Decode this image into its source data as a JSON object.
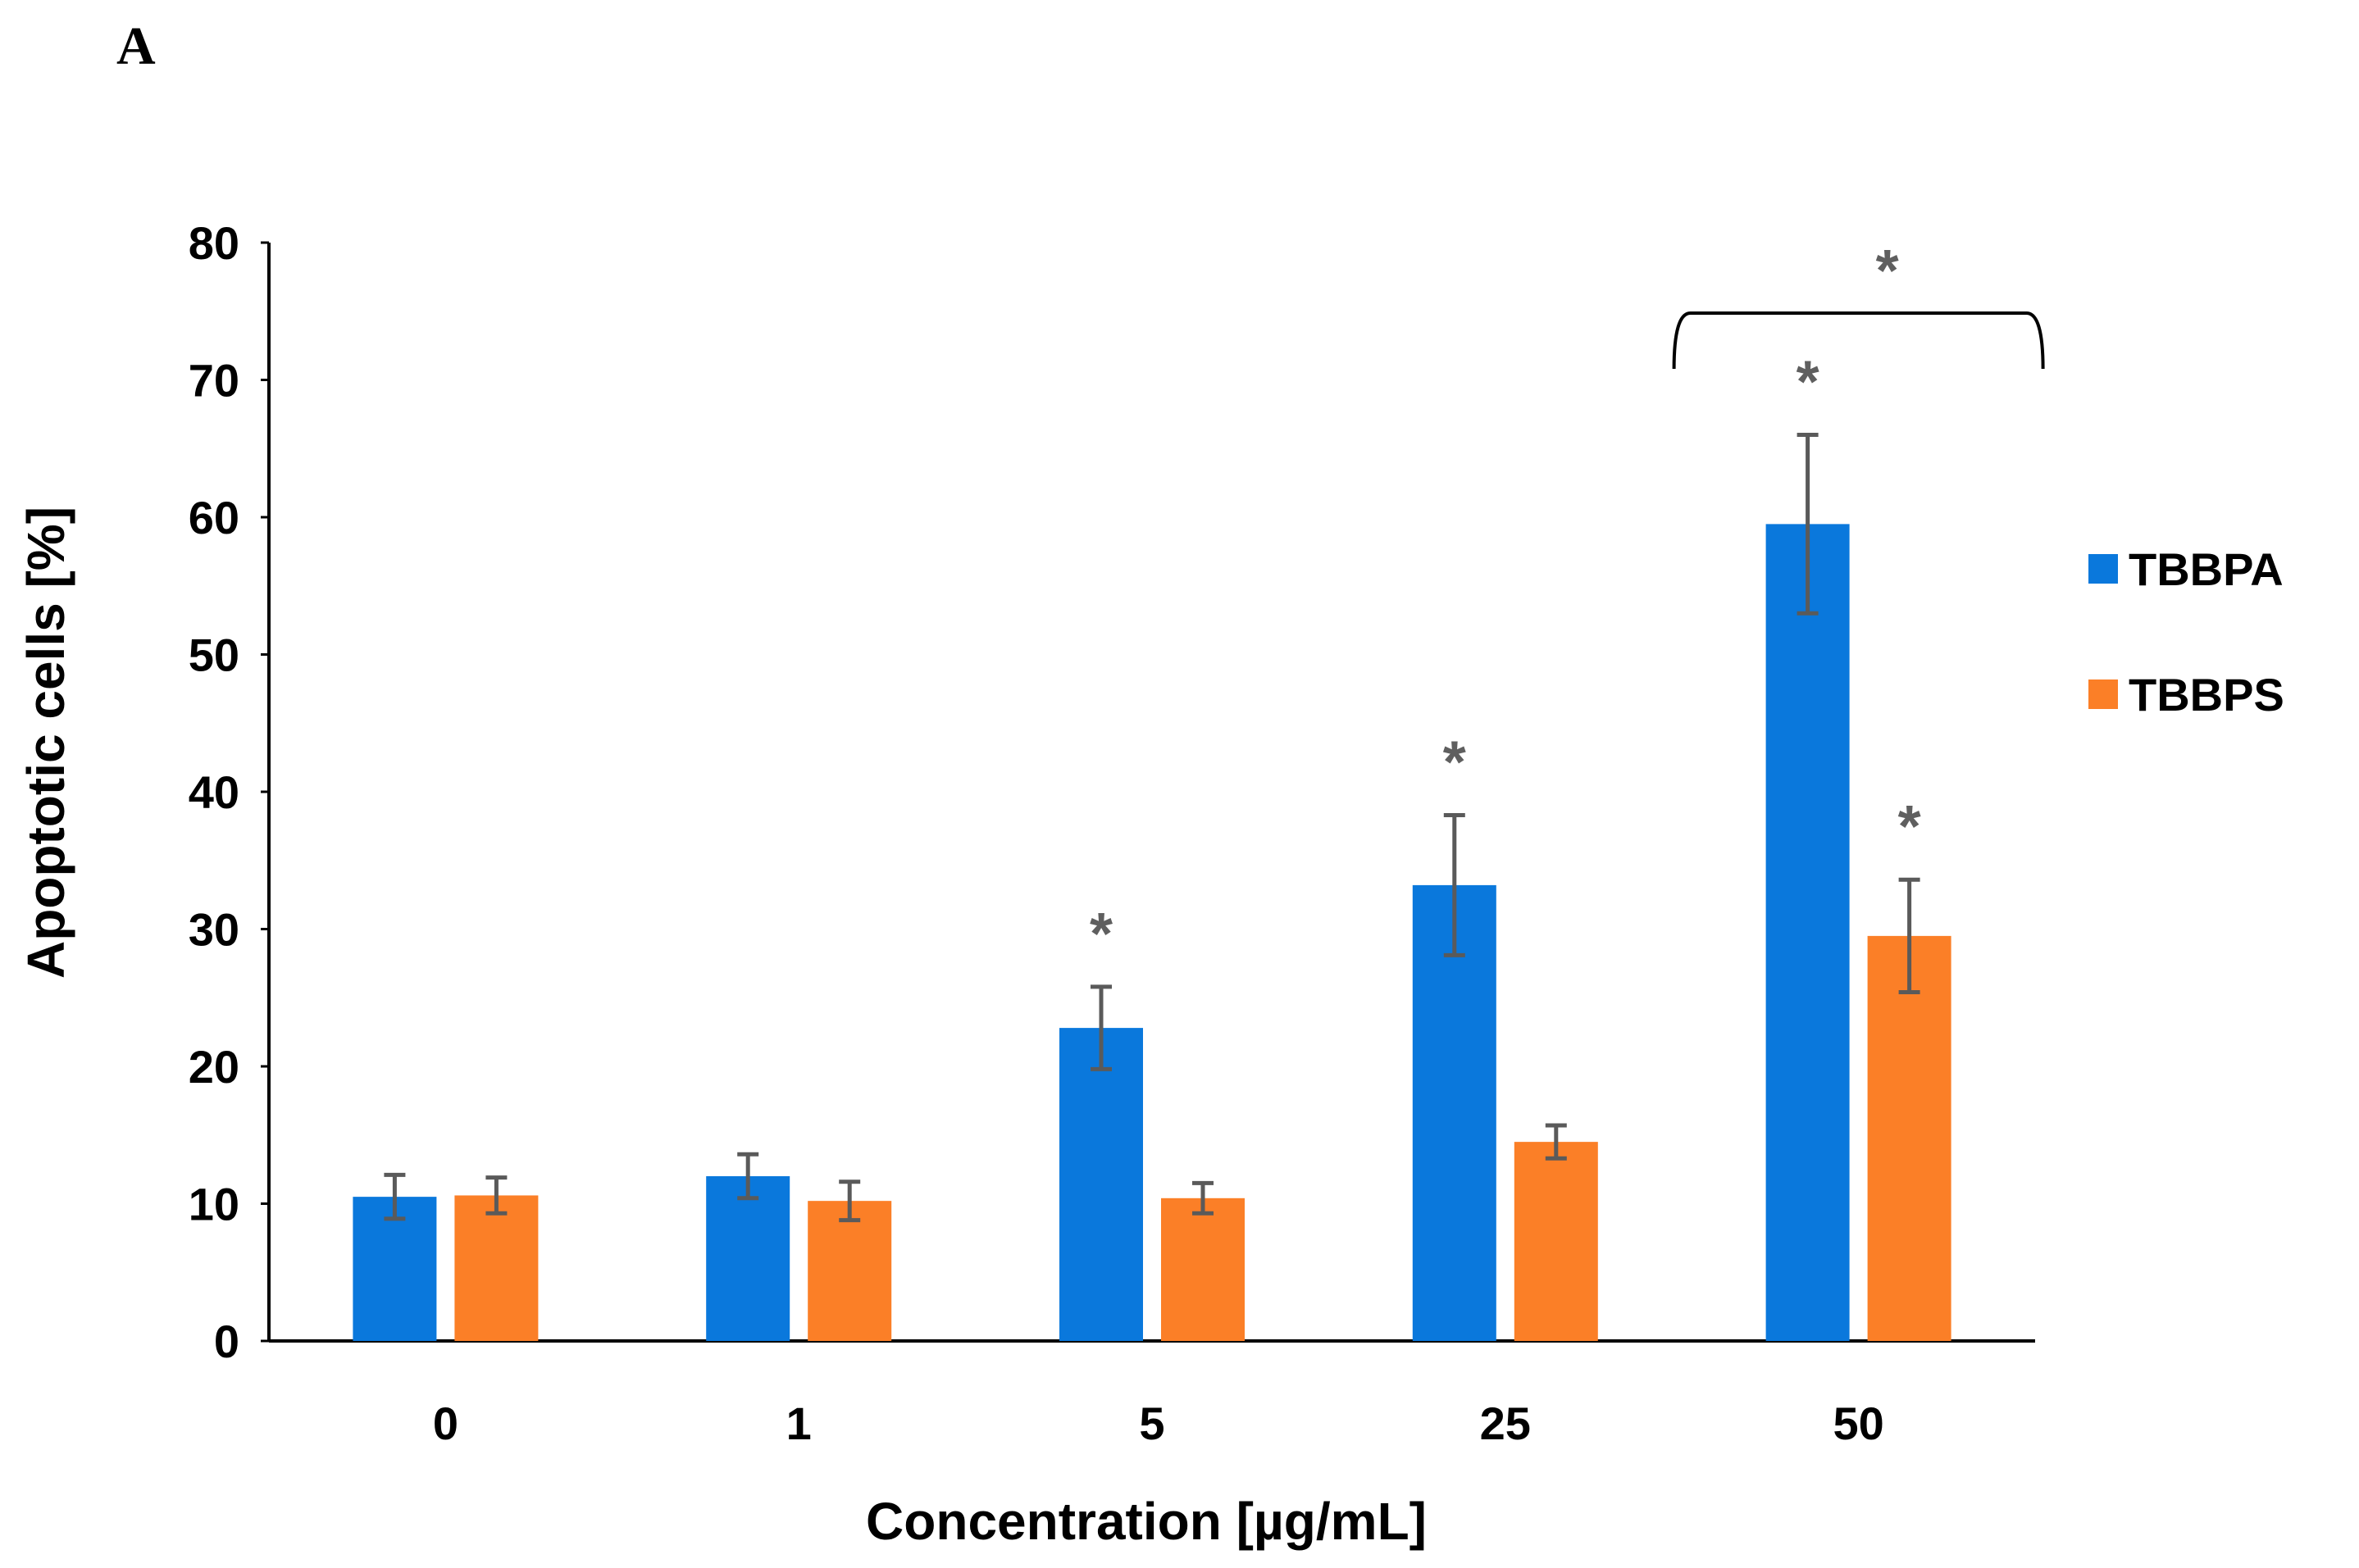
{
  "panel_label": "A",
  "colors": {
    "TBBPA": "#0a78dc",
    "TBBPS": "#fb7f27",
    "error_bar": "#5a5a5a",
    "axis": "#000000",
    "significance": "#5f5f5f"
  },
  "chart_data": {
    "type": "bar",
    "xlabel": "Concentration [µg/mL]",
    "ylabel": "Apoptotic cells [%]",
    "ylim": [
      0,
      80
    ],
    "yticks": [
      0,
      10,
      20,
      30,
      40,
      50,
      60,
      70,
      80
    ],
    "categories": [
      "0",
      "1",
      "5",
      "25",
      "50"
    ],
    "series": [
      {
        "name": "TBBPA",
        "values": [
          10.5,
          12.0,
          22.8,
          33.2,
          59.5
        ],
        "errors": [
          1.6,
          1.6,
          3.0,
          5.1,
          6.5
        ],
        "significant": [
          false,
          false,
          true,
          true,
          true
        ]
      },
      {
        "name": "TBBPS",
        "values": [
          10.6,
          10.2,
          10.4,
          14.5,
          29.5
        ],
        "errors": [
          1.3,
          1.4,
          1.1,
          1.2,
          4.1
        ],
        "significant": [
          false,
          false,
          false,
          false,
          true
        ]
      }
    ],
    "legend": {
      "position": "right",
      "entries": [
        "TBBPA",
        "TBBPS"
      ]
    },
    "grid": false,
    "significance_marker": "*",
    "bracket": {
      "category": "50",
      "label": "*"
    }
  }
}
